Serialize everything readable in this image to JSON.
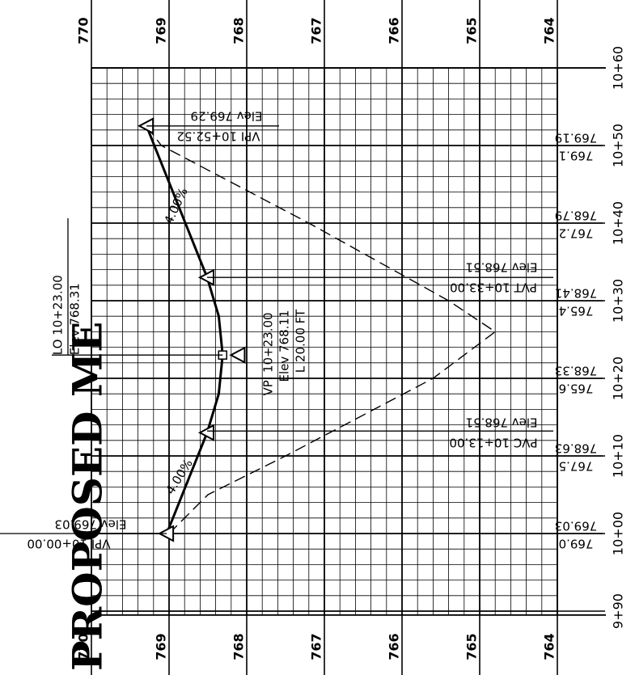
{
  "title": "PROPOSED ME",
  "elevation_ticks": [
    "770",
    "769",
    "768",
    "767",
    "766",
    "765",
    "764"
  ],
  "stations": [
    "9+90",
    "10+00",
    "10+10",
    "10+20",
    "10+30",
    "10+40",
    "10+50",
    "10+60"
  ],
  "existing_elevations": [
    {
      "station": "10+00",
      "value": "769.0"
    },
    {
      "station": "10+10",
      "value": "767.5"
    },
    {
      "station": "10+20",
      "value": "765.6"
    },
    {
      "station": "10+30",
      "value": "765.4"
    },
    {
      "station": "10+40",
      "value": "767.2"
    },
    {
      "station": "10+50",
      "value": "769.1"
    }
  ],
  "proposed_elevations": [
    {
      "station": "10+00",
      "value": "769.03"
    },
    {
      "station": "10+10",
      "value": "768.63"
    },
    {
      "station": "10+20",
      "value": "768.33"
    },
    {
      "station": "10+30",
      "value": "768.41"
    },
    {
      "station": "10+40",
      "value": "768.79"
    },
    {
      "station": "10+50",
      "value": "769.19"
    }
  ],
  "labels": {
    "vpi_start": {
      "line1": "VPI 10+00.00",
      "line2": "Elev 769.03"
    },
    "vpi_end": {
      "line1": "VPI 10+52.52",
      "line2": "Elev 769.29"
    },
    "pvc": {
      "line1": "PVC 10+13.00",
      "line2": "Elev 768.51"
    },
    "pvt": {
      "line1": "PVT 10+33.00",
      "line2": "Elev 768.51"
    },
    "vpi_mid": {
      "line1": "VPI 10+23.00",
      "line2": "Elev 768.11",
      "line3": "L 20.00 FT"
    },
    "low_point": {
      "line1": "LO 10+23.00",
      "line2": "Elev 768.31"
    },
    "grade_left": "4.00%",
    "grade_right": "4.00%"
  },
  "chart_data": {
    "type": "line",
    "title": "PROPOSED ME",
    "xlabel": "",
    "ylabel": "",
    "elevation_range": [
      764,
      770
    ],
    "station_range": [
      989.5,
      1060
    ],
    "grid": true,
    "series": [
      {
        "style": "dashed",
        "points": [
          [
            1000,
            769.0
          ],
          [
            1005,
            768.5
          ],
          [
            1010,
            767.5
          ],
          [
            1020,
            765.6
          ],
          [
            1026,
            764.8
          ],
          [
            1030,
            765.4
          ],
          [
            1040,
            767.2
          ],
          [
            1050,
            769.1
          ],
          [
            1052.52,
            769.29
          ]
        ]
      },
      {
        "style": "solid",
        "points": [
          [
            1000,
            769.03
          ],
          [
            1010,
            768.63
          ],
          [
            1013,
            768.51
          ],
          [
            1018,
            768.36
          ],
          [
            1023,
            768.31
          ],
          [
            1028,
            768.36
          ],
          [
            1033,
            768.51
          ],
          [
            1040,
            768.79
          ],
          [
            1050,
            769.19
          ],
          [
            1052.52,
            769.29
          ]
        ]
      }
    ],
    "vertices": [
      {
        "station": 1000,
        "elev": 769.03
      },
      {
        "station": 1013,
        "elev": 768.51
      },
      {
        "station": 1023,
        "elev": 768.11
      },
      {
        "station": 1033,
        "elev": 768.51
      },
      {
        "station": 1052.52,
        "elev": 769.29
      }
    ]
  }
}
